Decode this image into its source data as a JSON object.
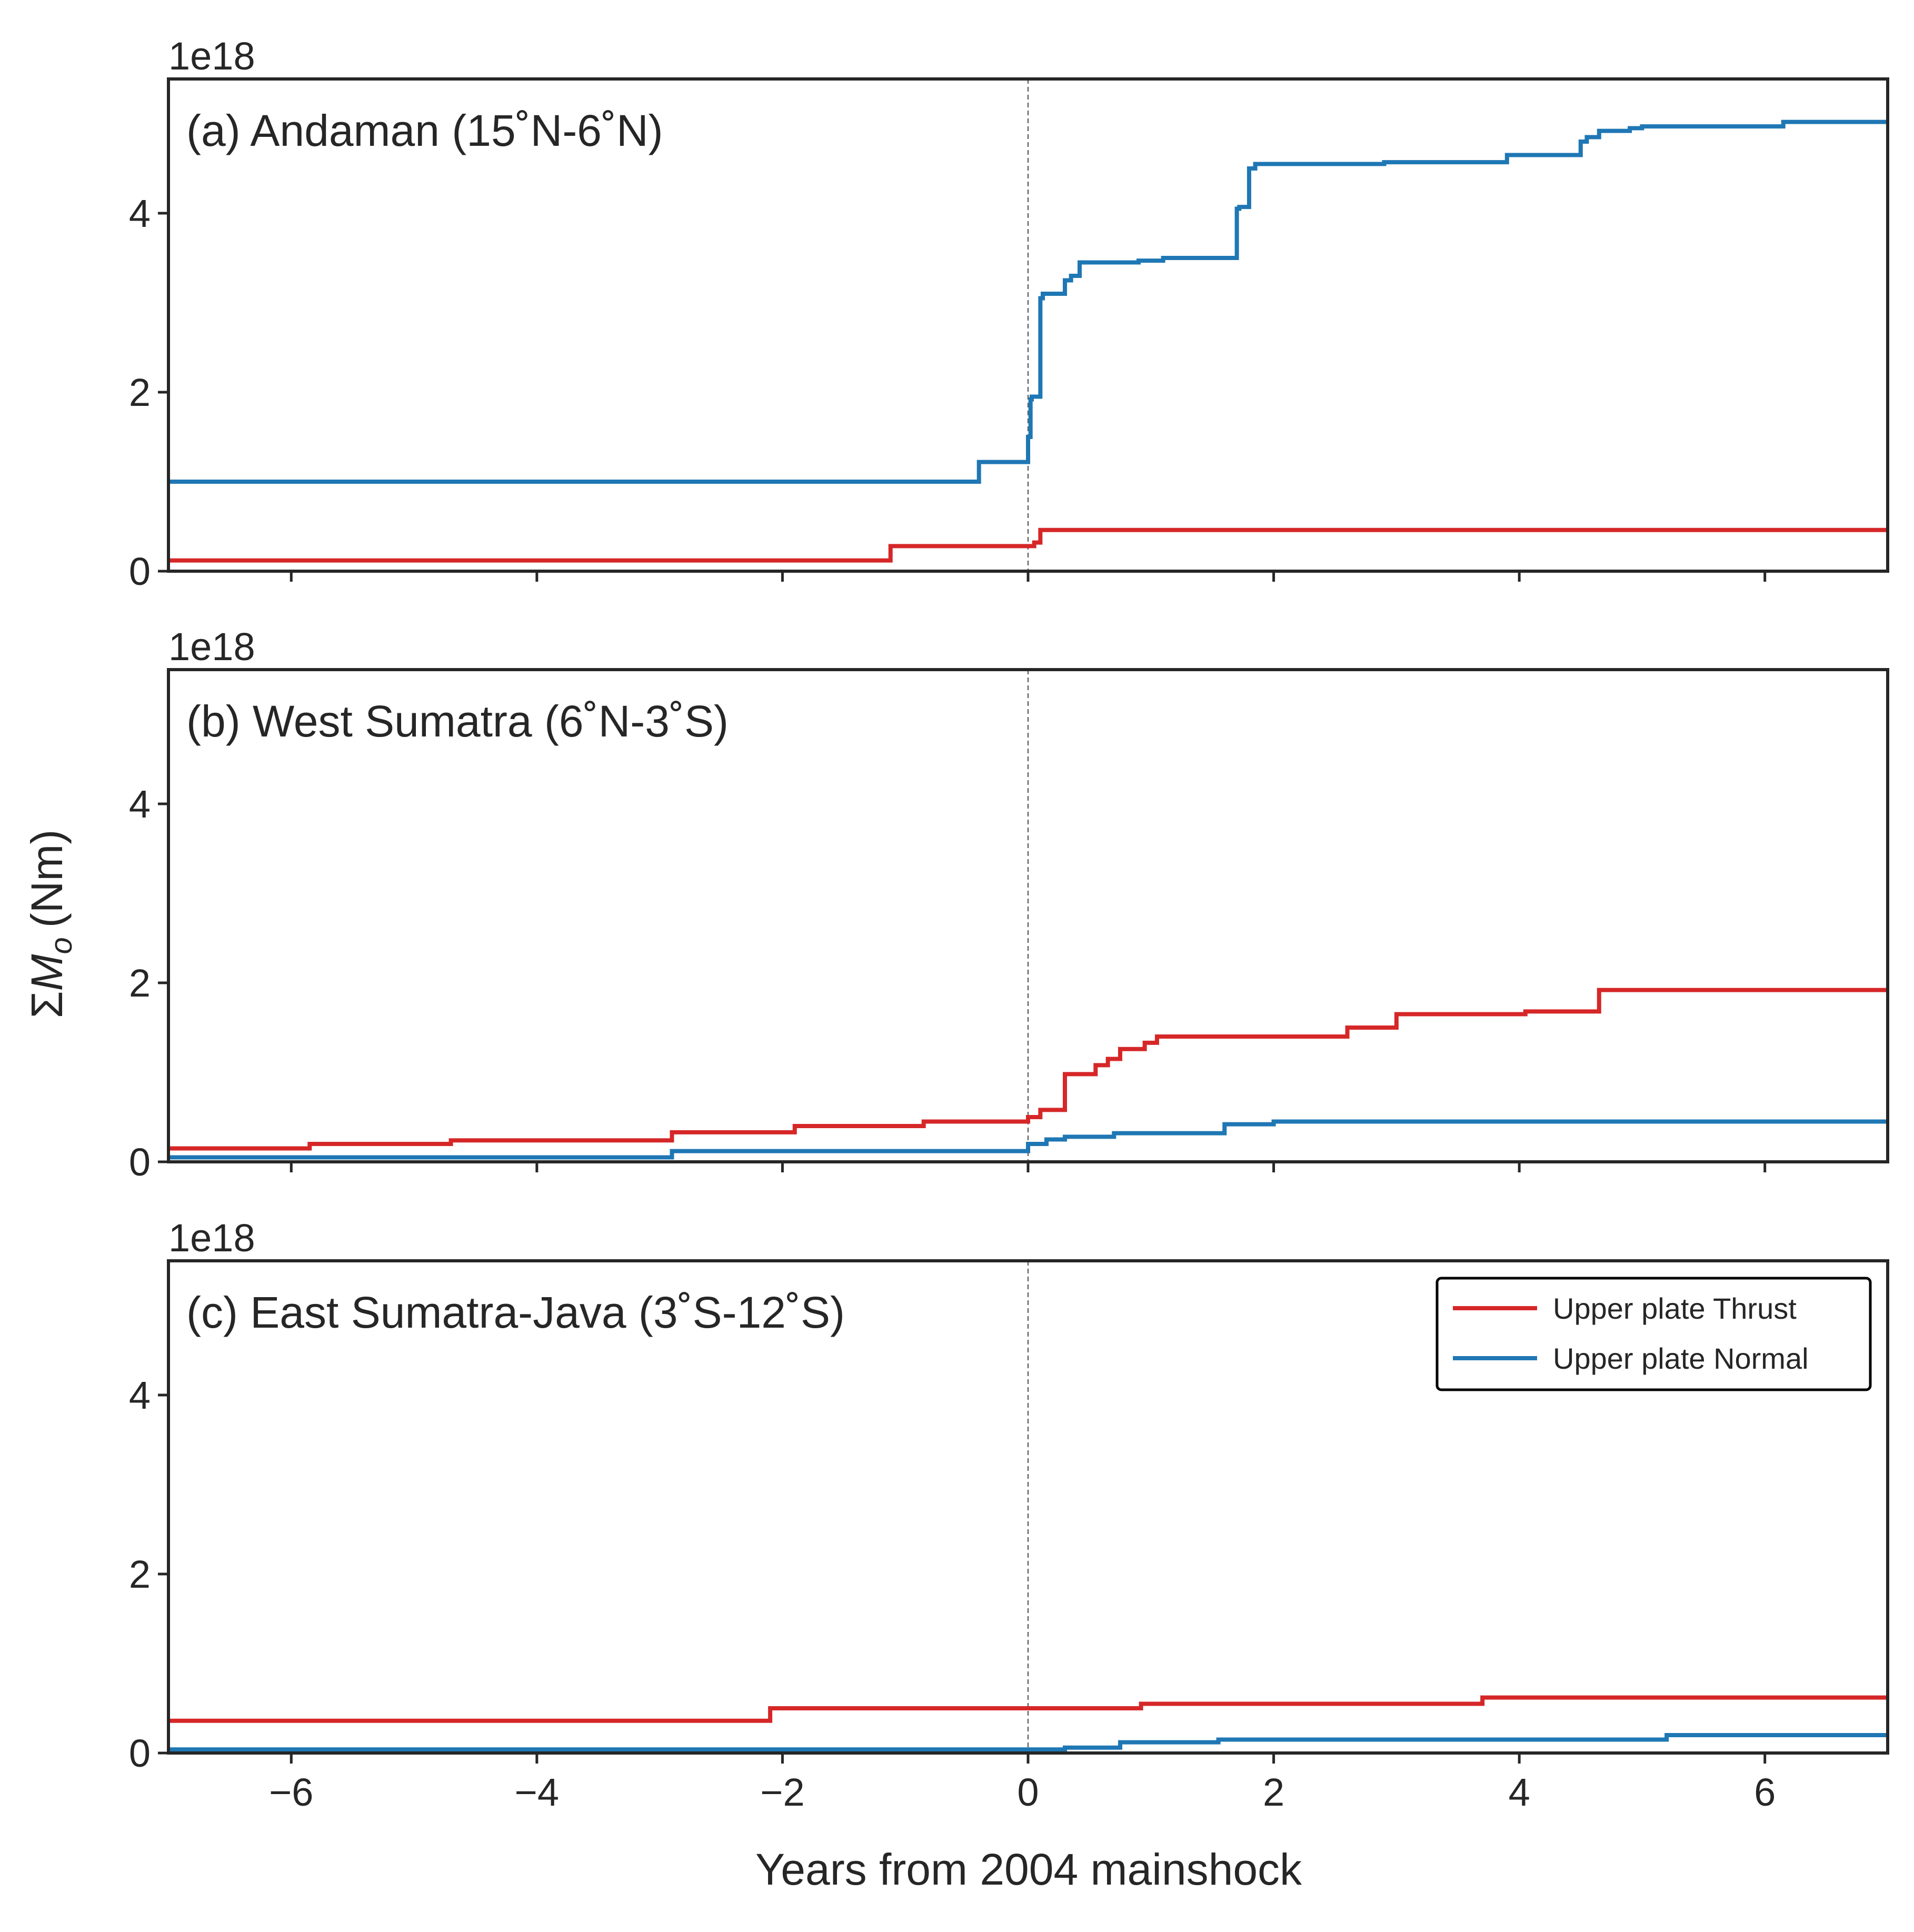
{
  "figure": {
    "ylabel_prefix": "Σ",
    "ylabel_symbol": "M",
    "ylabel_subscript": "o",
    "ylabel_unit": "(Nm)",
    "xlabel": "Years from 2004 mainshock",
    "offset_text": "1e18",
    "colors": {
      "thrust": "#d62728",
      "normal": "#1f77b4",
      "mainshock_line": "#666666",
      "axes": "#262626"
    }
  },
  "legend": {
    "placement": "top-right of panel (c)",
    "entries": [
      "Upper plate Thrust",
      "Upper plate Normal"
    ]
  },
  "chart_data": [
    {
      "type": "line",
      "drawstyle": "steps-post",
      "title": "(a) Andaman (15˚N-6˚N)",
      "xlim": [
        -7,
        7
      ],
      "ylim": [
        0,
        5.5
      ],
      "y_scale_note": "1e18",
      "xticks": [
        -6,
        -4,
        -2,
        0,
        2,
        4,
        6
      ],
      "xtick_labels": [
        "",
        "",
        "",
        "",
        "",
        "",
        ""
      ],
      "yticks": [
        0,
        2,
        4
      ],
      "ytick_labels": [
        "0",
        "2",
        "4"
      ],
      "vline_x": 0,
      "series": [
        {
          "name": "Upper plate Thrust",
          "color": "#d62728",
          "x": [
            -7,
            -1.12,
            0.05,
            0.1,
            7
          ],
          "y": [
            0.12,
            0.28,
            0.32,
            0.46,
            0.46
          ]
        },
        {
          "name": "Upper plate Normal",
          "color": "#1f77b4",
          "x": [
            -7,
            -0.4,
            0.0,
            0.02,
            0.03,
            0.1,
            0.12,
            0.3,
            0.35,
            0.42,
            0.5,
            0.9,
            1.1,
            1.7,
            1.72,
            1.8,
            1.85,
            2.0,
            2.9,
            3.9,
            4.5,
            4.55,
            4.65,
            4.9,
            5.0,
            6.15,
            7
          ],
          "y": [
            1.0,
            1.22,
            1.5,
            1.92,
            1.95,
            3.05,
            3.1,
            3.25,
            3.3,
            3.45,
            3.45,
            3.47,
            3.5,
            4.05,
            4.07,
            4.5,
            4.55,
            4.55,
            4.57,
            4.65,
            4.8,
            4.85,
            4.92,
            4.95,
            4.97,
            5.02,
            5.02
          ]
        }
      ]
    },
    {
      "type": "line",
      "drawstyle": "steps-post",
      "title": "(b) West Sumatra (6˚N-3˚S)",
      "xlim": [
        -7,
        7
      ],
      "ylim": [
        0,
        5.5
      ],
      "y_scale_note": "1e18",
      "xticks": [
        -6,
        -4,
        -2,
        0,
        2,
        4,
        6
      ],
      "xtick_labels": [
        "",
        "",
        "",
        "",
        "",
        "",
        ""
      ],
      "yticks": [
        0,
        2,
        4
      ],
      "ytick_labels": [
        "0",
        "2",
        "4"
      ],
      "vline_x": 0,
      "series": [
        {
          "name": "Upper plate Thrust",
          "color": "#d62728",
          "x": [
            -7,
            -5.85,
            -4.7,
            -2.9,
            -1.9,
            -0.85,
            0.0,
            0.1,
            0.3,
            0.55,
            0.65,
            0.75,
            0.95,
            1.05,
            2.6,
            3.0,
            4.05,
            4.65,
            7
          ],
          "y": [
            0.15,
            0.2,
            0.24,
            0.33,
            0.4,
            0.45,
            0.5,
            0.58,
            0.98,
            1.08,
            1.15,
            1.26,
            1.33,
            1.4,
            1.5,
            1.65,
            1.68,
            1.92,
            1.92
          ]
        },
        {
          "name": "Upper plate Normal",
          "color": "#1f77b4",
          "x": [
            -7,
            -2.9,
            0.0,
            0.15,
            0.3,
            0.7,
            1.6,
            2.0,
            7
          ],
          "y": [
            0.05,
            0.12,
            0.2,
            0.25,
            0.28,
            0.32,
            0.42,
            0.45,
            0.45
          ]
        }
      ]
    },
    {
      "type": "line",
      "drawstyle": "steps-post",
      "title": "(c) East Sumatra-Java (3˚S-12˚S)",
      "xlim": [
        -7,
        7
      ],
      "ylim": [
        0,
        5.5
      ],
      "y_scale_note": "1e18",
      "xticks": [
        -6,
        -4,
        -2,
        0,
        2,
        4,
        6
      ],
      "xtick_labels": [
        "−6",
        "−4",
        "−2",
        "0",
        "2",
        "4",
        "6"
      ],
      "yticks": [
        0,
        2,
        4
      ],
      "ytick_labels": [
        "0",
        "2",
        "4"
      ],
      "vline_x": 0,
      "series": [
        {
          "name": "Upper plate Thrust",
          "color": "#d62728",
          "x": [
            -7,
            -2.1,
            0.92,
            3.7,
            7
          ],
          "y": [
            0.36,
            0.5,
            0.55,
            0.62,
            0.62
          ]
        },
        {
          "name": "Upper plate Normal",
          "color": "#1f77b4",
          "x": [
            -7,
            0.3,
            0.75,
            1.55,
            5.2,
            7
          ],
          "y": [
            0.04,
            0.06,
            0.12,
            0.15,
            0.2,
            0.2
          ]
        }
      ]
    }
  ]
}
